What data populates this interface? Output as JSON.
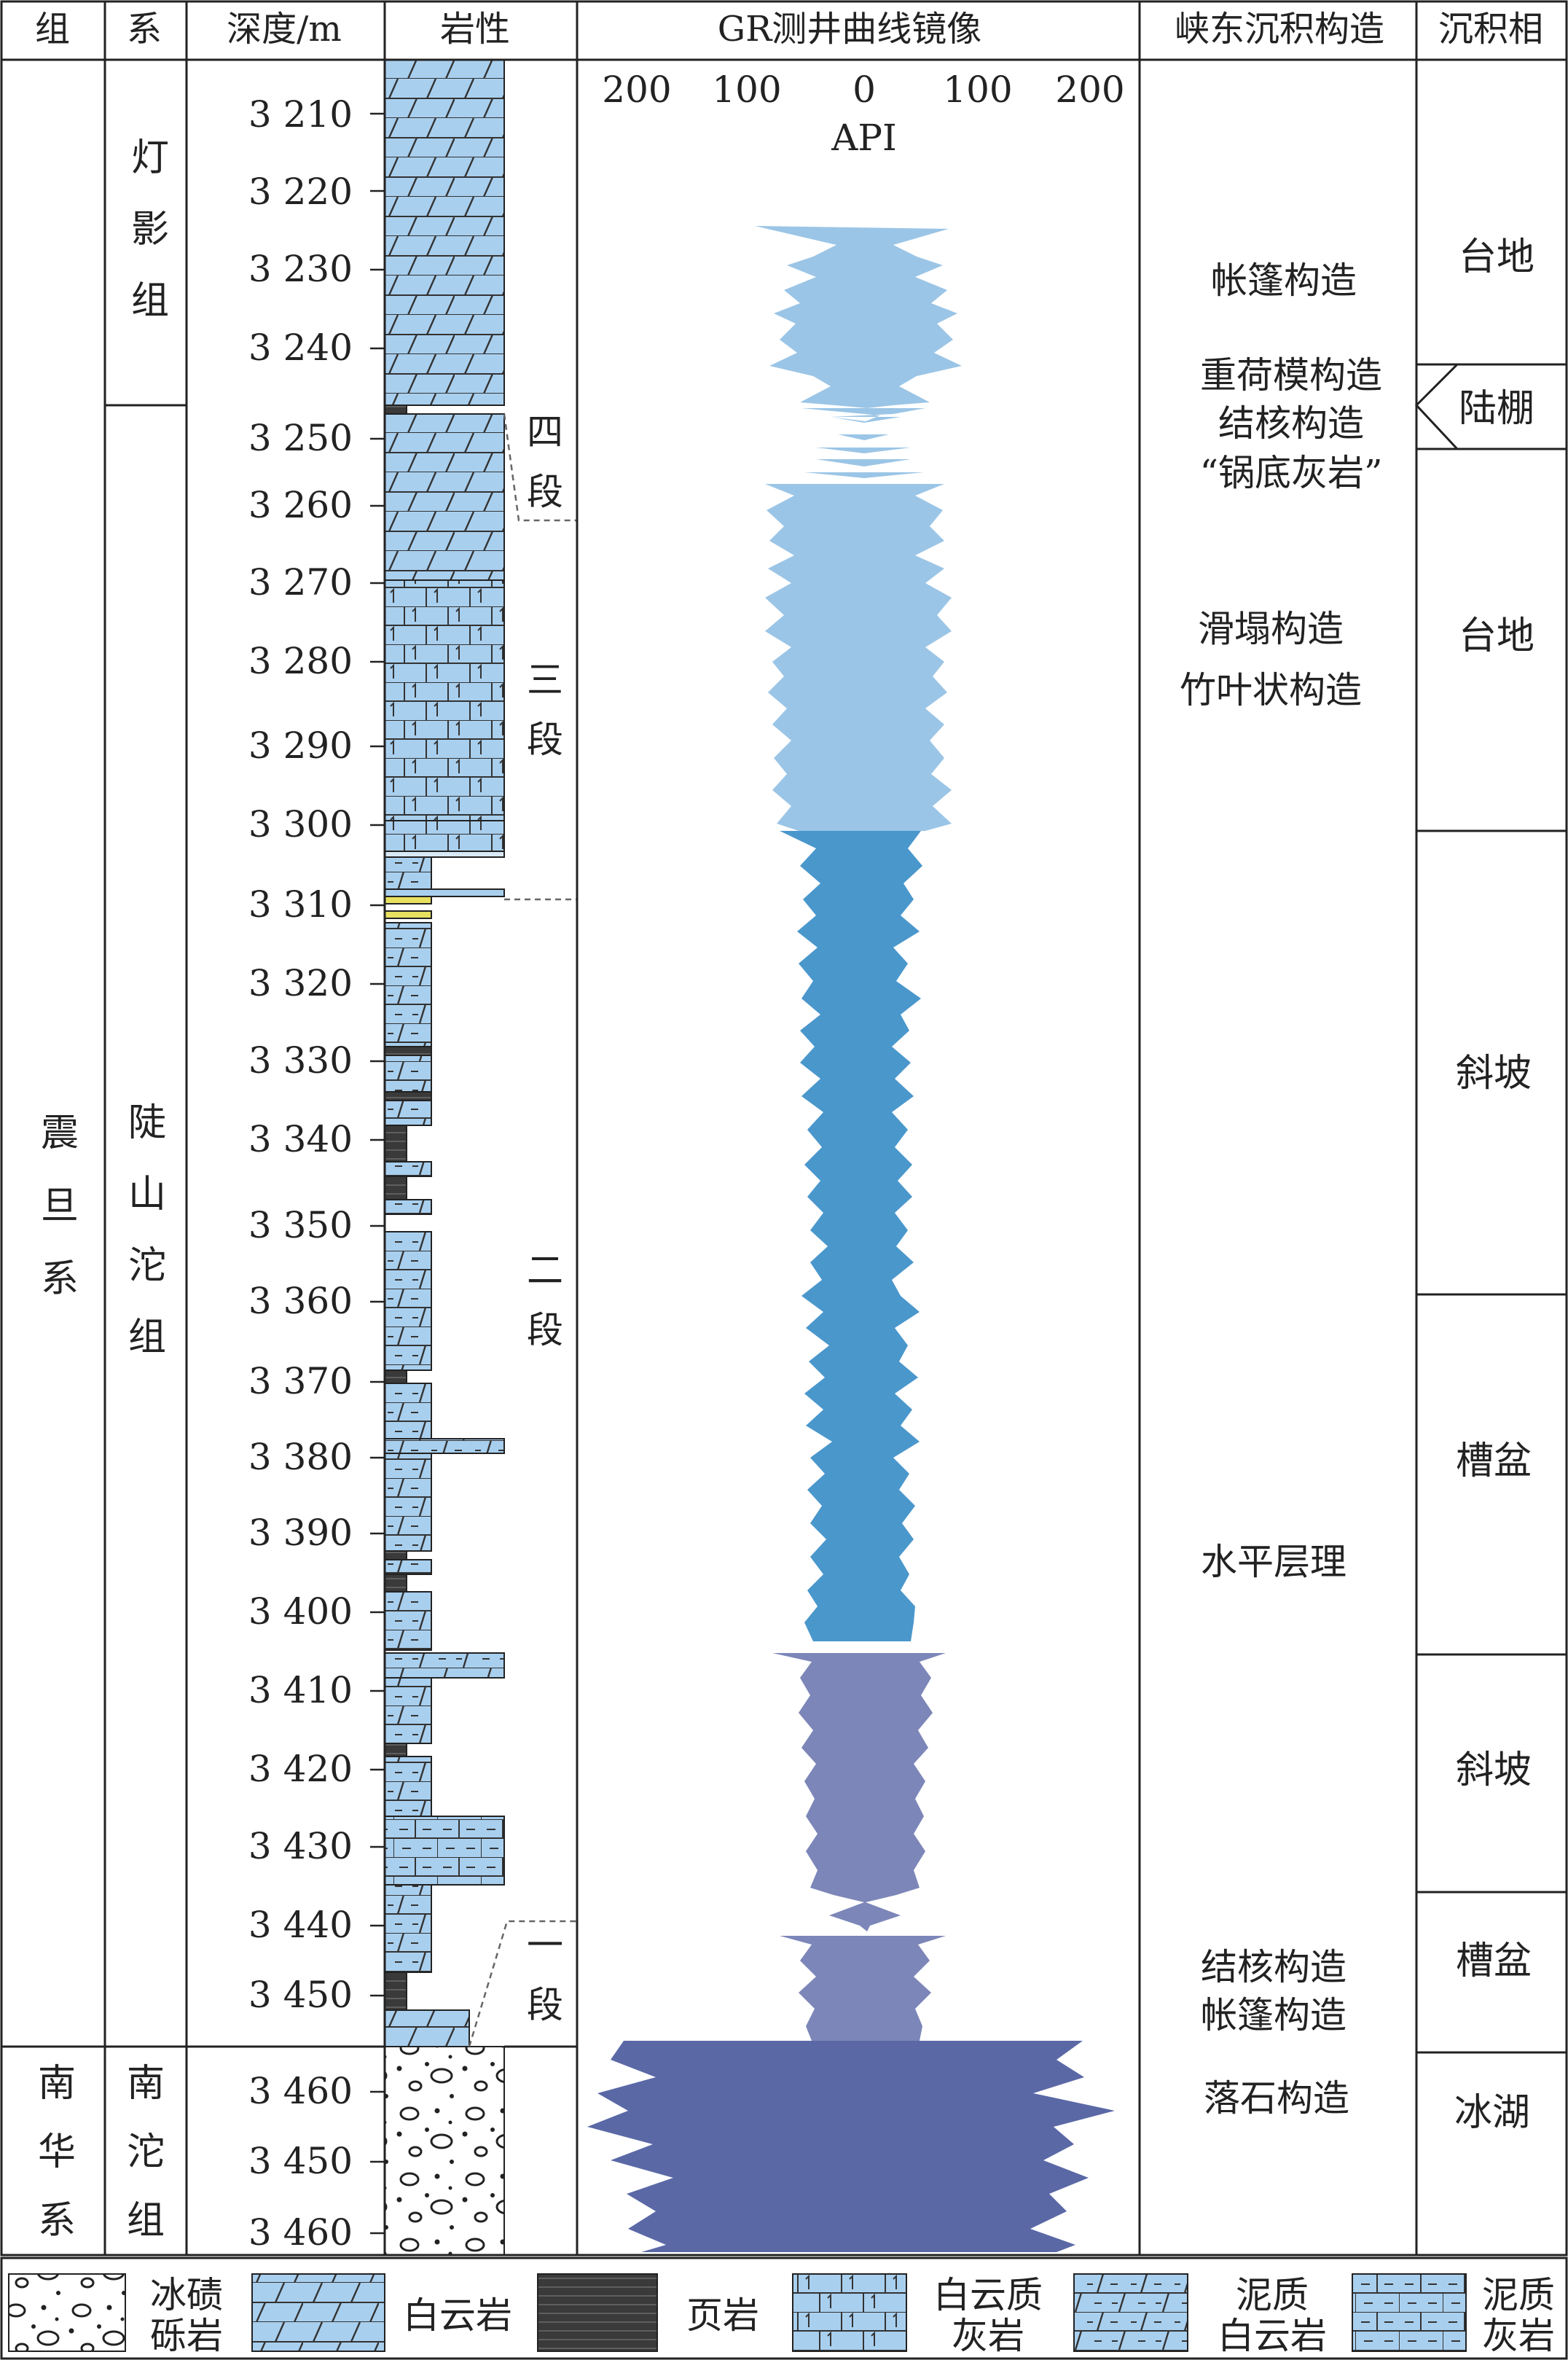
{
  "headers": {
    "group": "组",
    "system": "系",
    "depth": "深度/m",
    "lithology": "岩性",
    "gr": "GR测井曲线镜像",
    "structure": "峡东沉积构造",
    "facies": "沉积相"
  },
  "gr_axis": {
    "ticks": [
      "200",
      "100",
      "0",
      "100",
      "200"
    ],
    "unit": "API"
  },
  "depth_ticks": [
    "3 210",
    "3 220",
    "3 230",
    "3 240",
    "3 250",
    "3 260",
    "3 270",
    "3 280",
    "3 290",
    "3 300",
    "3 310",
    "3 320",
    "3 330",
    "3 340",
    "3 350",
    "3 360",
    "3 370",
    "3 380",
    "3 390",
    "3 400",
    "3 410",
    "3 420",
    "3 430",
    "3 440",
    "3 450",
    "3 460",
    "3 450",
    "3 460"
  ],
  "groups": [
    {
      "label": "震旦系"
    },
    {
      "label": "南华系"
    }
  ],
  "formations": [
    {
      "label": "灯影组"
    },
    {
      "label": "陡山沱组"
    },
    {
      "label": "南沱组"
    }
  ],
  "members": [
    {
      "label": "四段"
    },
    {
      "label": "三段"
    },
    {
      "label": "二段"
    },
    {
      "label": "一段"
    }
  ],
  "structures": [
    "帐篷构造",
    "重荷模构造",
    "结核构造",
    "“锅底灰岩”",
    "滑塌构造",
    "竹叶状构造",
    "水平层理",
    "结核构造",
    "帐篷构造",
    "落石构造"
  ],
  "facies": [
    "台地",
    "陆棚",
    "台地",
    "斜坡",
    "槽盆",
    "斜坡",
    "槽盆",
    "冰湖"
  ],
  "legend": [
    {
      "label": "冰碛砾岩"
    },
    {
      "label": "白云岩"
    },
    {
      "label": "页岩"
    },
    {
      "label": "白云质灰岩"
    },
    {
      "label": "泥质白云岩"
    },
    {
      "label": "泥质灰岩"
    }
  ],
  "colors": {
    "rock_fill": "#a9cfee",
    "shale": "#3a3a3a",
    "gr_member4": "#9bc5e6",
    "gr_member2_upper": "#4a97cc",
    "gr_member1": "#7c86b8",
    "gr_nantuo": "#5a68a6"
  }
}
